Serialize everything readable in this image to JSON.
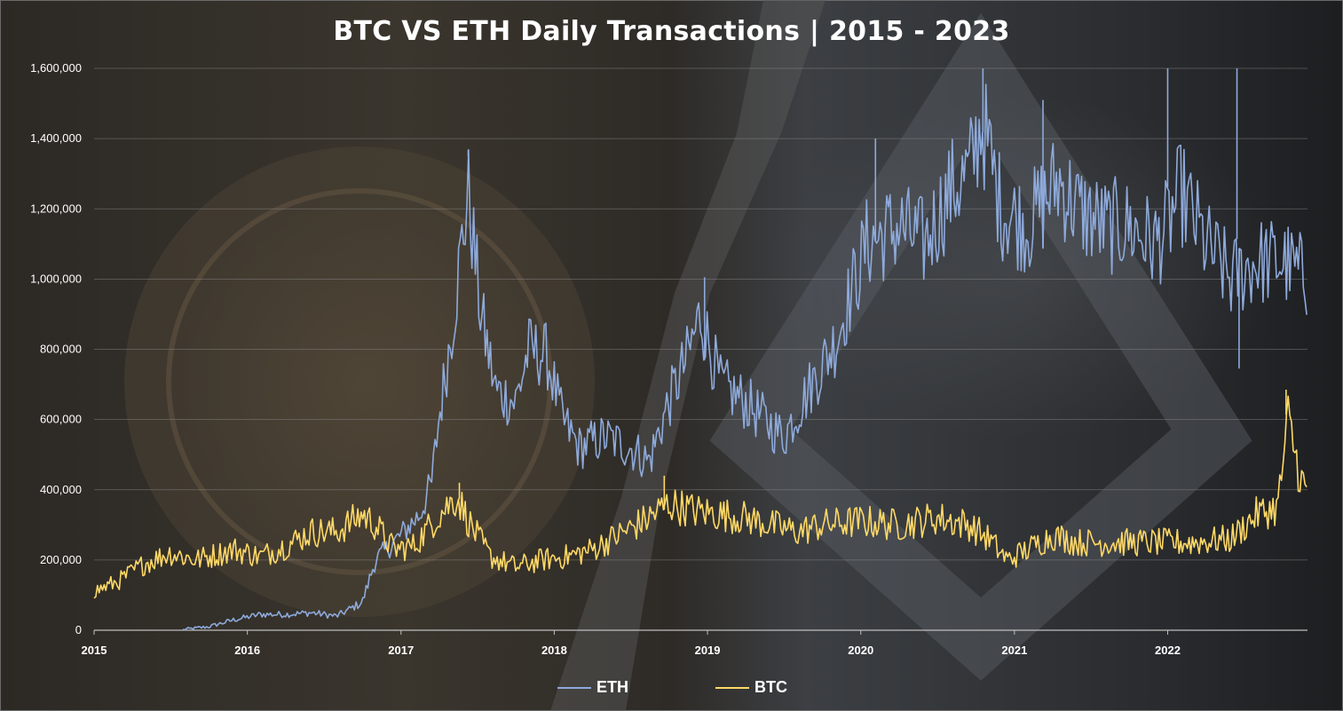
{
  "chart_data": {
    "type": "line",
    "title": "BTC VS ETH Daily Transactions | 2015 - 2023",
    "xlabel": "",
    "ylabel": "",
    "x_tick_labels": [
      "2015",
      "2016",
      "2017",
      "2018",
      "2019",
      "2020",
      "2021",
      "2022"
    ],
    "y_tick_labels": [
      "0",
      "200,000",
      "400,000",
      "600,000",
      "800,000",
      "1,000,000",
      "1,200,000",
      "1,400,000",
      "1,600,000"
    ],
    "xlim": [
      "2015-01-01",
      "2022-11-30"
    ],
    "ylim": [
      0,
      1600000
    ],
    "grid": "horizontal",
    "legend_position": "bottom",
    "series": [
      {
        "name": "ETH",
        "color": "#8eaadb",
        "points": [
          [
            "2015-08-01",
            2000
          ],
          [
            "2015-10-01",
            10000
          ],
          [
            "2015-12-01",
            30000
          ],
          [
            "2016-02-01",
            45000
          ],
          [
            "2016-04-01",
            45000
          ],
          [
            "2016-06-01",
            50000
          ],
          [
            "2016-08-01",
            40000
          ],
          [
            "2016-10-01",
            80000
          ],
          [
            "2016-11-01",
            200000
          ],
          [
            "2016-12-15",
            250000
          ],
          [
            "2017-02-15",
            330000
          ],
          [
            "2017-03-15",
            420000
          ],
          [
            "2017-04-01",
            600000
          ],
          [
            "2017-05-01",
            850000
          ],
          [
            "2017-06-10",
            1250000
          ],
          [
            "2017-07-10",
            900000
          ],
          [
            "2017-08-15",
            680000
          ],
          [
            "2017-10-01",
            650000
          ],
          [
            "2017-11-01",
            800000
          ],
          [
            "2017-12-15",
            780000
          ],
          [
            "2018-01-20",
            600000
          ],
          [
            "2018-03-01",
            520000
          ],
          [
            "2018-05-01",
            550000
          ],
          [
            "2018-07-01",
            520000
          ],
          [
            "2018-08-15",
            480000
          ],
          [
            "2018-10-01",
            650000
          ],
          [
            "2018-11-15",
            780000
          ],
          [
            "2018-12-15",
            900000
          ],
          [
            "2019-02-01",
            700000
          ],
          [
            "2019-04-01",
            650000
          ],
          [
            "2019-05-15",
            600000
          ],
          [
            "2019-07-01",
            550000
          ],
          [
            "2019-08-01",
            620000
          ],
          [
            "2019-09-15",
            720000
          ],
          [
            "2019-11-01",
            820000
          ],
          [
            "2020-01-15",
            1100000
          ],
          [
            "2020-04-01",
            1150000
          ],
          [
            "2020-06-01",
            1100000
          ],
          [
            "2020-08-01",
            1250000
          ],
          [
            "2020-09-15",
            1300000
          ],
          [
            "2020-10-15",
            1450000
          ],
          [
            "2020-12-01",
            1200000
          ],
          [
            "2021-02-01",
            1150000
          ],
          [
            "2021-04-15",
            1280000
          ],
          [
            "2021-06-01",
            1200000
          ],
          [
            "2021-08-01",
            1150000
          ],
          [
            "2021-10-01",
            1150000
          ],
          [
            "2021-12-01",
            1100000
          ],
          [
            "2022-01-01",
            1150000
          ],
          [
            "2022-02-01",
            1250000
          ],
          [
            "2022-04-01",
            1100000
          ],
          [
            "2022-06-01",
            1000000
          ],
          [
            "2022-08-01",
            1050000
          ],
          [
            "2022-10-01",
            1050000
          ],
          [
            "2022-11-30",
            1000000
          ]
        ],
        "spikes": [
          [
            "2017-06-10",
            1350000
          ],
          [
            "2018-12-25",
            1005000
          ],
          [
            "2020-02-05",
            1400000
          ],
          [
            "2020-10-18",
            1600000
          ],
          [
            "2021-03-10",
            1510000
          ],
          [
            "2022-01-01",
            1600000
          ],
          [
            "2022-06-15",
            1600000
          ],
          [
            "2022-06-20",
            745000
          ]
        ]
      },
      {
        "name": "BTC",
        "color": "#ffd966",
        "points": [
          [
            "2015-01-01",
            110000
          ],
          [
            "2015-03-01",
            140000
          ],
          [
            "2015-05-01",
            190000
          ],
          [
            "2015-07-01",
            220000
          ],
          [
            "2015-09-01",
            200000
          ],
          [
            "2015-12-01",
            230000
          ],
          [
            "2016-02-01",
            210000
          ],
          [
            "2016-04-01",
            240000
          ],
          [
            "2016-06-01",
            280000
          ],
          [
            "2016-08-01",
            280000
          ],
          [
            "2016-10-01",
            330000
          ],
          [
            "2016-11-01",
            300000
          ],
          [
            "2016-12-15",
            230000
          ],
          [
            "2017-02-01",
            240000
          ],
          [
            "2017-04-01",
            330000
          ],
          [
            "2017-05-15",
            380000
          ],
          [
            "2017-06-15",
            300000
          ],
          [
            "2017-08-01",
            210000
          ],
          [
            "2017-10-01",
            180000
          ],
          [
            "2017-12-01",
            200000
          ],
          [
            "2018-02-01",
            210000
          ],
          [
            "2018-04-01",
            230000
          ],
          [
            "2018-06-01",
            270000
          ],
          [
            "2018-08-01",
            310000
          ],
          [
            "2018-10-01",
            360000
          ],
          [
            "2018-12-01",
            340000
          ],
          [
            "2019-02-01",
            330000
          ],
          [
            "2019-04-01",
            320000
          ],
          [
            "2019-06-01",
            300000
          ],
          [
            "2019-08-01",
            280000
          ],
          [
            "2019-10-01",
            300000
          ],
          [
            "2020-01-01",
            310000
          ],
          [
            "2020-04-01",
            300000
          ],
          [
            "2020-07-01",
            320000
          ],
          [
            "2020-09-15",
            300000
          ],
          [
            "2020-11-01",
            260000
          ],
          [
            "2020-12-15",
            200000
          ],
          [
            "2021-02-01",
            230000
          ],
          [
            "2021-04-01",
            270000
          ],
          [
            "2021-06-01",
            250000
          ],
          [
            "2021-09-01",
            250000
          ],
          [
            "2021-12-01",
            250000
          ],
          [
            "2022-03-01",
            250000
          ],
          [
            "2022-06-01",
            260000
          ],
          [
            "2022-08-01",
            330000
          ],
          [
            "2022-09-20",
            350000
          ],
          [
            "2022-10-15",
            600000
          ],
          [
            "2022-11-10",
            450000
          ],
          [
            "2022-11-30",
            380000
          ]
        ],
        "spikes": [
          [
            "2017-05-20",
            420000
          ],
          [
            "2018-09-20",
            440000
          ],
          [
            "2022-10-10",
            685000
          ]
        ]
      }
    ]
  }
}
